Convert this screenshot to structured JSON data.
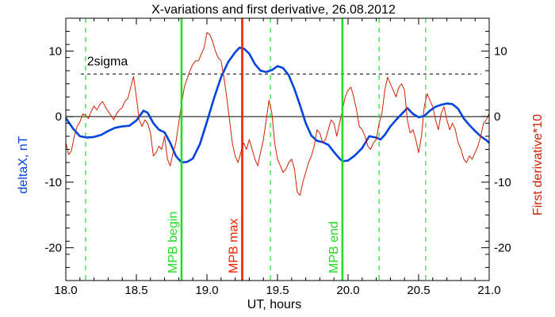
{
  "chart_data": {
    "type": "line",
    "title": "X-variations and first derivative, 26.08.2012",
    "xlabel": "UT, hours",
    "ylabel": "deltaX, nT",
    "ylabel_right": "First derivative*10",
    "xlim": [
      18.0,
      21.0
    ],
    "ylim": [
      -25,
      15
    ],
    "x_ticks": [
      18.0,
      18.5,
      19.0,
      19.5,
      20.0,
      20.5,
      21.0
    ],
    "x_tick_labels": [
      "18.0",
      "18.5",
      "19.0",
      "19.5",
      "20.0",
      "20.5",
      "21.0"
    ],
    "y_ticks": [
      -20,
      -10,
      0,
      10
    ],
    "y_tick_labels": [
      "-20",
      "-10",
      "0",
      "10"
    ],
    "y_ticks_right": [
      -20,
      -10,
      0,
      10
    ],
    "y_tick_labels_right": [
      "-20",
      "-10",
      "0",
      "10"
    ],
    "grid": false,
    "colors": {
      "deltaX": "#0044dd",
      "derivative": "#cc2200",
      "mpb_boundary": "#22dd22",
      "mpb_max": "#ee2200",
      "axes": "#000000",
      "ylabel_left": "#0044dd",
      "ylabel_right": "#cc2200"
    },
    "series": [
      {
        "id": "deltaX",
        "x": [
          18.0,
          18.05,
          18.1,
          18.15,
          18.2,
          18.25,
          18.3,
          18.35,
          18.4,
          18.45,
          18.5,
          18.55,
          18.58,
          18.62,
          18.66,
          18.7,
          18.74,
          18.78,
          18.82,
          18.86,
          18.9,
          18.95,
          19.0,
          19.05,
          19.1,
          19.15,
          19.2,
          19.23,
          19.26,
          19.3,
          19.34,
          19.38,
          19.42,
          19.46,
          19.5,
          19.54,
          19.58,
          19.62,
          19.66,
          19.7,
          19.74,
          19.78,
          19.82,
          19.86,
          19.9,
          19.94,
          19.96,
          20.0,
          20.05,
          20.1,
          20.15,
          20.2,
          20.23,
          20.26,
          20.3,
          20.34,
          20.38,
          20.42,
          20.46,
          20.5,
          20.54,
          20.58,
          20.62,
          20.66,
          20.7,
          20.74,
          20.78,
          20.82,
          20.86,
          20.9,
          20.94,
          20.98,
          21.0
        ],
        "y": [
          -0.2,
          -1.8,
          -3.0,
          -3.2,
          -3.1,
          -2.8,
          -2.2,
          -1.7,
          -1.5,
          -1.4,
          -0.6,
          0.9,
          0.6,
          -1.0,
          -2.0,
          -2.4,
          -4.0,
          -6.0,
          -7.0,
          -6.9,
          -6.4,
          -4.2,
          -0.8,
          2.8,
          6.0,
          8.3,
          9.8,
          10.5,
          10.4,
          9.6,
          8.0,
          7.0,
          6.8,
          7.1,
          7.7,
          7.4,
          6.3,
          4.2,
          1.7,
          -1.0,
          -2.9,
          -3.7,
          -3.9,
          -4.3,
          -5.4,
          -6.4,
          -6.8,
          -6.7,
          -5.9,
          -4.8,
          -3.0,
          -3.2,
          -3.5,
          -2.8,
          -1.5,
          -0.5,
          0.4,
          1.3,
          0.4,
          -0.1,
          0.1,
          0.9,
          1.5,
          1.8,
          2.0,
          1.9,
          1.2,
          -0.3,
          -1.3,
          -2.2,
          -3.0,
          -3.6,
          -4.0
        ]
      },
      {
        "id": "derivative",
        "x": [
          18.0,
          18.02,
          18.04,
          18.06,
          18.08,
          18.1,
          18.12,
          18.14,
          18.16,
          18.18,
          18.2,
          18.22,
          18.24,
          18.26,
          18.28,
          18.3,
          18.32,
          18.34,
          18.36,
          18.38,
          18.4,
          18.42,
          18.44,
          18.46,
          18.48,
          18.5,
          18.52,
          18.54,
          18.56,
          18.58,
          18.6,
          18.62,
          18.64,
          18.66,
          18.68,
          18.7,
          18.72,
          18.74,
          18.76,
          18.78,
          18.8,
          18.82,
          18.84,
          18.86,
          18.88,
          18.9,
          18.92,
          18.94,
          18.96,
          18.98,
          19.0,
          19.02,
          19.04,
          19.06,
          19.08,
          19.1,
          19.12,
          19.14,
          19.16,
          19.18,
          19.2,
          19.22,
          19.24,
          19.26,
          19.28,
          19.3,
          19.32,
          19.34,
          19.36,
          19.38,
          19.4,
          19.42,
          19.44,
          19.46,
          19.48,
          19.5,
          19.52,
          19.54,
          19.56,
          19.58,
          19.6,
          19.62,
          19.64,
          19.66,
          19.68,
          19.7,
          19.72,
          19.74,
          19.76,
          19.78,
          19.8,
          19.82,
          19.84,
          19.86,
          19.88,
          19.9,
          19.92,
          19.94,
          19.96,
          19.98,
          20.0,
          20.02,
          20.04,
          20.06,
          20.08,
          20.1,
          20.12,
          20.14,
          20.16,
          20.18,
          20.2,
          20.22,
          20.24,
          20.26,
          20.28,
          20.3,
          20.32,
          20.34,
          20.36,
          20.38,
          20.4,
          20.42,
          20.44,
          20.46,
          20.48,
          20.5,
          20.52,
          20.54,
          20.56,
          20.58,
          20.6,
          20.62,
          20.64,
          20.66,
          20.68,
          20.7,
          20.72,
          20.74,
          20.76,
          20.78,
          20.8,
          20.82,
          20.84,
          20.86,
          20.88,
          20.9,
          20.92,
          20.94,
          20.96,
          20.98,
          21.0
        ],
        "y": [
          -4.0,
          -5.8,
          -5.2,
          -3.0,
          -1.5,
          -0.8,
          0.4,
          0.2,
          -0.3,
          0.8,
          1.6,
          1.0,
          1.8,
          2.3,
          1.5,
          0.8,
          0.2,
          -0.5,
          0.5,
          1.0,
          1.4,
          2.4,
          2.8,
          4.5,
          6.1,
          3.0,
          -0.5,
          -1.5,
          -0.5,
          -1.0,
          -2.5,
          -6.0,
          -5.5,
          -4.5,
          -5.0,
          -3.0,
          -6.5,
          -7.5,
          -5.5,
          -4.0,
          -1.0,
          2.0,
          4.5,
          5.8,
          7.0,
          8.0,
          8.5,
          8.5,
          9.5,
          10.5,
          12.8,
          12.5,
          11.5,
          10.0,
          9.0,
          8.5,
          6.0,
          3.0,
          -0.5,
          -4.0,
          -6.0,
          -7.0,
          -5.5,
          -4.0,
          -5.0,
          -3.5,
          -5.0,
          -6.5,
          -7.5,
          -5.5,
          -3.5,
          -0.5,
          2.5,
          0.5,
          -4.0,
          -6.5,
          -7.5,
          -8.5,
          -8.0,
          -7.0,
          -6.5,
          -8.0,
          -11.5,
          -12.0,
          -10.0,
          -8.5,
          -7.0,
          -6.0,
          -4.5,
          -2.0,
          -2.5,
          -4.0,
          -3.5,
          -2.0,
          -0.5,
          -1.0,
          -3.0,
          -1.0,
          1.0,
          3.0,
          4.0,
          4.5,
          3.0,
          1.0,
          -1.5,
          -2.0,
          -3.0,
          -4.5,
          -5.0,
          -4.0,
          -3.5,
          -1.0,
          0.5,
          4.0,
          6.0,
          5.0,
          4.0,
          3.0,
          4.5,
          5.0,
          4.0,
          -0.5,
          -2.5,
          -2.0,
          -3.5,
          -5.5,
          -3.0,
          1.5,
          3.5,
          2.5,
          1.5,
          -0.5,
          -2.0,
          0.5,
          1.5,
          -0.5,
          -2.0,
          -1.0,
          -2.0,
          -4.0,
          -5.0,
          -6.5,
          -7.0,
          -6.0,
          -6.5,
          -5.5,
          -4.5,
          -3.0,
          -1.0,
          -0.5,
          0.5
        ]
      }
    ],
    "reference_lines": {
      "zero": 0,
      "sigma_level": 6.5,
      "sigma_label": "2sigma",
      "dashed_times": [
        18.14,
        19.45,
        20.22,
        20.55
      ],
      "mpb_begin": {
        "x": 18.82,
        "label": "MPB begin"
      },
      "mpb_max": {
        "x": 19.25,
        "label": "MPB max"
      },
      "mpb_end": {
        "x": 19.96,
        "label": "MPB end"
      }
    }
  }
}
